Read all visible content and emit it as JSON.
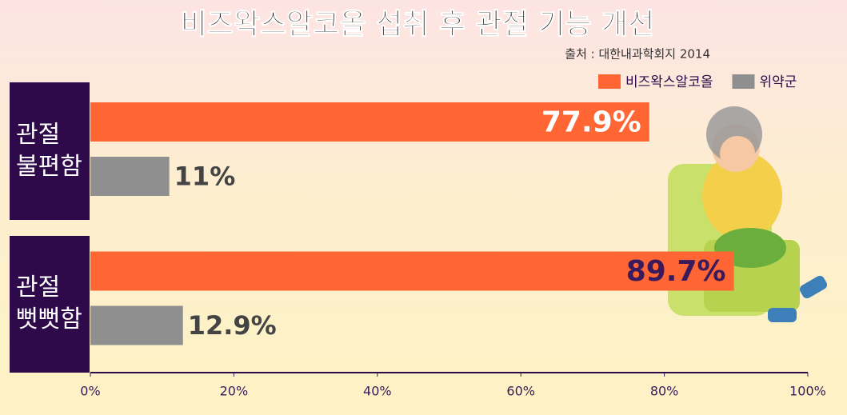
{
  "chart_data": {
    "type": "hbar",
    "title": "비즈왁스알코올 섭취 후 관절 기능 개선",
    "subtitle": "출처 : 대한내과학회지 2014",
    "categories": [
      "관절\n불편함",
      "관절\n뻣뻣함"
    ],
    "series": [
      {
        "name": "비즈왁스알코올",
        "color": "#ff6633",
        "values": [
          77.9,
          89.7
        ],
        "value_labels": [
          "77.9%",
          "89.7%"
        ]
      },
      {
        "name": "위약군",
        "color": "#8f8f8f",
        "values": [
          11,
          12.9
        ],
        "value_labels": [
          "11%",
          "12.9%"
        ]
      }
    ],
    "xlim": [
      0,
      100
    ],
    "xticks": [
      {
        "value": 0,
        "label": "0%"
      },
      {
        "value": 20,
        "label": "20%"
      },
      {
        "value": 40,
        "label": "40%"
      },
      {
        "value": 60,
        "label": "60%"
      },
      {
        "value": 80,
        "label": "80%"
      },
      {
        "value": 100,
        "label": "100%"
      }
    ],
    "legend": "top-right"
  }
}
